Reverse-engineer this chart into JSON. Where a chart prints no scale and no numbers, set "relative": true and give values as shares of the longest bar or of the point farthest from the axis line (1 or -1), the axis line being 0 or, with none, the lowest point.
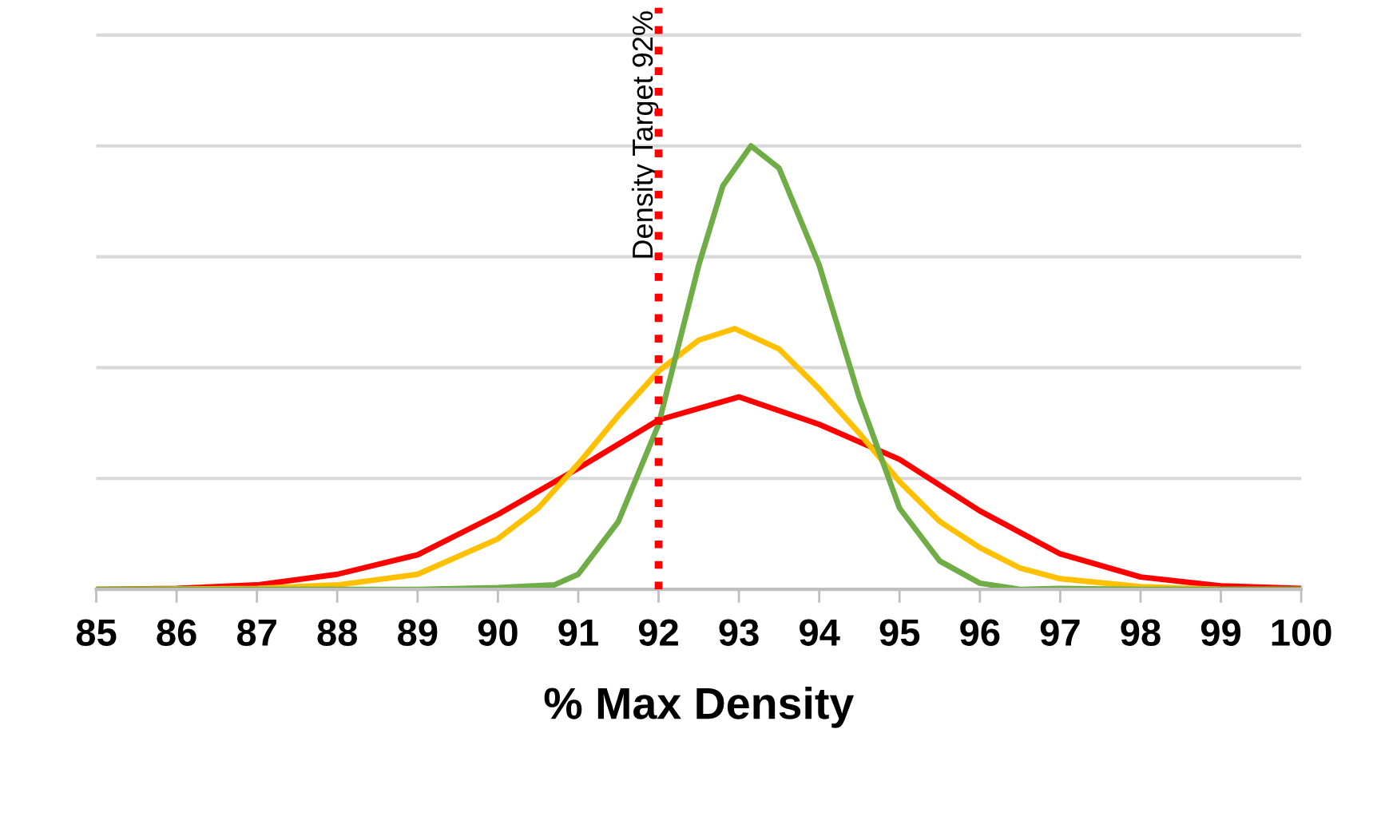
{
  "chart_data": {
    "type": "line",
    "relative": true,
    "xlabel": "% Max Density",
    "xlim": [
      85,
      100
    ],
    "xticks": [
      85,
      86,
      87,
      88,
      89,
      90,
      91,
      92,
      93,
      94,
      95,
      96,
      97,
      98,
      99,
      100
    ],
    "grid": "y",
    "legend": false,
    "series": [
      {
        "color": "#ff0000",
        "x": [
          85,
          86,
          87,
          88,
          89,
          90,
          91,
          92,
          93,
          94,
          95,
          96,
          97,
          98,
          99,
          100
        ],
        "values": [
          0,
          0.002,
          0.01,
          0.034,
          0.078,
          0.169,
          0.273,
          0.382,
          0.434,
          0.372,
          0.293,
          0.177,
          0.08,
          0.028,
          0.008,
          0.002
        ]
      },
      {
        "color": "#ffc000",
        "x": [
          85,
          87,
          88,
          89,
          90,
          90.5,
          91,
          91.5,
          92,
          92.5,
          92.95,
          93.5,
          94,
          94.5,
          95,
          95.5,
          96,
          96.5,
          97,
          98,
          99,
          100
        ],
        "values": [
          0,
          0.002,
          0.01,
          0.034,
          0.114,
          0.183,
          0.283,
          0.392,
          0.492,
          0.562,
          0.588,
          0.542,
          0.452,
          0.352,
          0.243,
          0.153,
          0.094,
          0.048,
          0.024,
          0.006,
          0,
          0
        ]
      },
      {
        "color": "#70ad47",
        "x": [
          85,
          89,
          90,
          90.7,
          91,
          91.5,
          92,
          92.5,
          92.8,
          93.15,
          93.5,
          94,
          94.5,
          95,
          95.5,
          96,
          96.5,
          97,
          98,
          100
        ],
        "values": [
          0,
          0,
          0.004,
          0.01,
          0.034,
          0.153,
          0.372,
          0.731,
          0.91,
          1,
          0.95,
          0.731,
          0.432,
          0.183,
          0.064,
          0.014,
          0,
          0.002,
          0,
          0
        ]
      }
    ],
    "ref_lines": [
      {
        "axis": "x",
        "value": 92,
        "label": "Density Target 92%",
        "color": "#ff0000",
        "line_style": "dotted"
      }
    ]
  }
}
